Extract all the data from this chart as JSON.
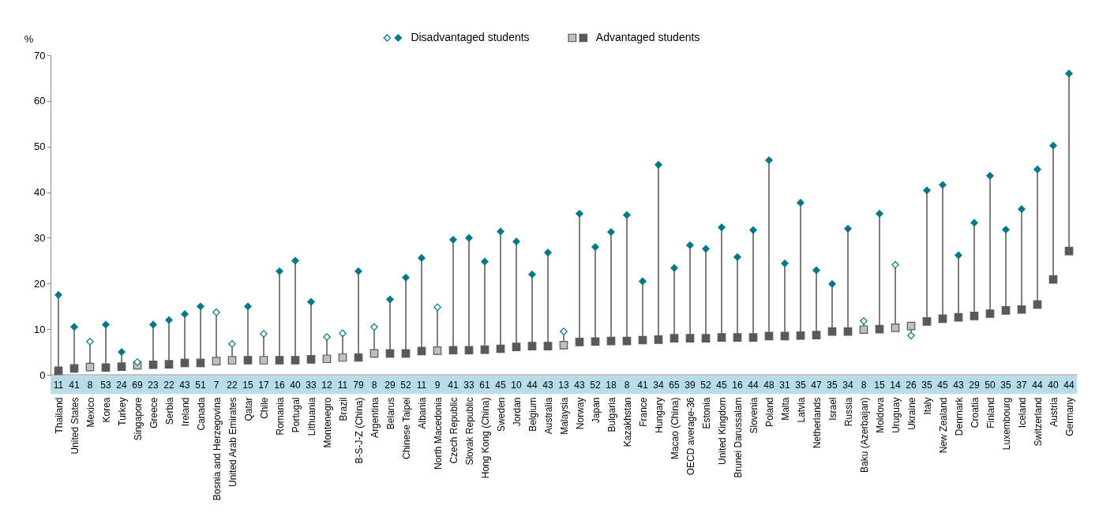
{
  "chart_data": {
    "type": "scatter",
    "ylabel": "%",
    "legend": "top",
    "grid": false,
    "ylim": [
      0,
      70
    ],
    "yticks": [
      0,
      10,
      20,
      30,
      40,
      50,
      60,
      70
    ],
    "categories": [
      "Thailand",
      "United States",
      "Mexico",
      "Korea",
      "Turkey",
      "Singapore",
      "Greece",
      "Serbia",
      "Ireland",
      "Canada",
      "Bosnia and Herzegovina",
      "United Arab Emirates",
      "Qatar",
      "Chile",
      "Romania",
      "Portugal",
      "Lithuania",
      "Montenegro",
      "Brazil",
      "B-S-J-Z (China)",
      "Argentina",
      "Belarus",
      "Chinese Taipei",
      "Albania",
      "North Macedonia",
      "Czech Republic",
      "Slovak Republic",
      "Hong Kong (China)",
      "Sweden",
      "Jordan",
      "Belgium",
      "Australia",
      "Malaysia",
      "Norway",
      "Japan",
      "Bulgaria",
      "Kazakhstan",
      "France",
      "Hungary",
      "Macao (China)",
      "OECD average-36",
      "Estonia",
      "United Kingdom",
      "Brunei Darussalam",
      "Slovenia",
      "Poland",
      "Malta",
      "Latvia",
      "Netherlands",
      "Israel",
      "Russia",
      "Baku (Azerbaijan)",
      "Moldova",
      "Uruguay",
      "Ukraine",
      "Italy",
      "New Zealand",
      "Denmark",
      "Croatia",
      "Finland",
      "Luxembourg",
      "Iceland",
      "Switzerland",
      "Austria",
      "Germany"
    ],
    "series": [
      {
        "name": "Disadvantaged students",
        "color": "#00788a",
        "marker": "diamond",
        "values": [
          17.5,
          10.5,
          null,
          11,
          5,
          null,
          11,
          12,
          13.3,
          15,
          null,
          null,
          15,
          null,
          22.7,
          25,
          16,
          null,
          null,
          22.7,
          null,
          16.5,
          21.3,
          25.6,
          null,
          29.6,
          30,
          24.8,
          31.4,
          29.2,
          22,
          26.8,
          null,
          35.3,
          28,
          31.3,
          35,
          20.5,
          46,
          23.4,
          28.4,
          27.6,
          32.3,
          25.8,
          31.7,
          47,
          24.4,
          37.7,
          22.9,
          19.9,
          32,
          null,
          35.3,
          null,
          null,
          40.4,
          41.6,
          26.2,
          33.3,
          43.6,
          31.8,
          36.3,
          45,
          50.2,
          66
        ]
      },
      {
        "color": "#ffffff",
        "marker": "diamond",
        "values": [
          null,
          null,
          7.3,
          null,
          null,
          2.8,
          null,
          null,
          null,
          null,
          13.7,
          6.8,
          null,
          9,
          null,
          null,
          null,
          8.3,
          9.1,
          null,
          10.5,
          null,
          null,
          null,
          14.8,
          null,
          null,
          null,
          null,
          null,
          null,
          null,
          9.5,
          null,
          null,
          null,
          null,
          null,
          null,
          null,
          null,
          null,
          null,
          null,
          null,
          null,
          null,
          null,
          null,
          null,
          null,
          11.8,
          null,
          24.1,
          8.6,
          null,
          null,
          null,
          null,
          null,
          null,
          null,
          null,
          null,
          null
        ]
      },
      {
        "name": "Advantaged students",
        "color": "#595959",
        "marker": "square",
        "values": [
          0.9,
          1.4,
          null,
          1.6,
          1.8,
          null,
          2.2,
          2.3,
          2.6,
          2.6,
          null,
          null,
          3.2,
          null,
          3.2,
          3.2,
          3.4,
          null,
          null,
          3.8,
          null,
          4.7,
          4.7,
          5.2,
          null,
          5.4,
          5.4,
          5.5,
          5.7,
          6.1,
          6.3,
          6.3,
          null,
          7.2,
          7.3,
          7.4,
          7.4,
          7.6,
          7.7,
          8,
          8,
          8,
          8.2,
          8.2,
          8.2,
          8.5,
          8.5,
          8.6,
          8.7,
          9.5,
          9.5,
          null,
          10,
          null,
          null,
          11.7,
          12.3,
          12.6,
          12.9,
          13.4,
          14.1,
          14.3,
          15.4,
          20.9,
          27.1
        ]
      },
      {
        "color": "#bfbfbf",
        "marker": "square",
        "values": [
          null,
          null,
          1.7,
          null,
          null,
          2.1,
          null,
          null,
          null,
          null,
          3,
          3.2,
          null,
          3.2,
          null,
          null,
          null,
          3.5,
          3.8,
          null,
          4.7,
          null,
          null,
          null,
          5.3,
          null,
          null,
          null,
          null,
          null,
          null,
          null,
          6.5,
          null,
          null,
          null,
          null,
          null,
          null,
          null,
          null,
          null,
          null,
          null,
          null,
          null,
          null,
          null,
          null,
          null,
          null,
          9.9,
          null,
          10.3,
          10.7,
          null,
          null,
          null,
          null,
          null,
          null,
          null,
          null,
          null,
          null
        ]
      }
    ],
    "annotations": [
      "11",
      "41",
      "8",
      "53",
      "24",
      "69",
      "23",
      "22",
      "43",
      "51",
      "7",
      "22",
      "15",
      "17",
      "16",
      "40",
      "33",
      "12",
      "11",
      "79",
      "8",
      "29",
      "52",
      "11",
      "9",
      "41",
      "33",
      "61",
      "45",
      "10",
      "44",
      "43",
      "13",
      "43",
      "52",
      "18",
      "8",
      "41",
      "34",
      "65",
      "39",
      "52",
      "45",
      "16",
      "44",
      "48",
      "31",
      "35",
      "47",
      "35",
      "34",
      "8",
      "15",
      "14",
      "26",
      "35",
      "45",
      "43",
      "29",
      "50",
      "35",
      "37",
      "44",
      "40",
      "44"
    ]
  }
}
